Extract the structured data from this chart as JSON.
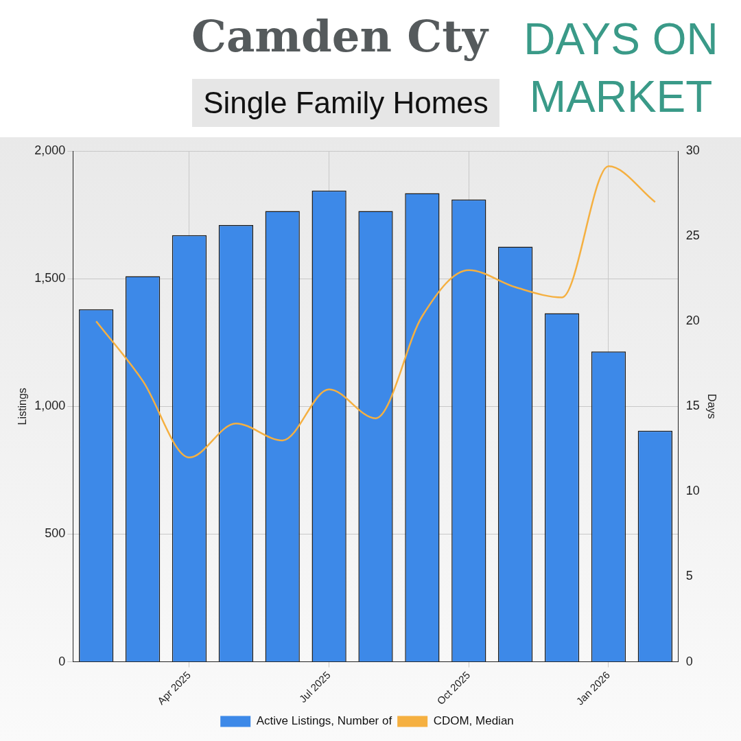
{
  "chart_data": {
    "type": "bar",
    "title": "Camden Cty",
    "subtitle": "Single Family Homes",
    "annotations": [
      "DAYS ON MARKET"
    ],
    "categories": [
      null,
      null,
      "Apr 2025",
      null,
      null,
      "Jul 2025",
      null,
      null,
      "Oct 2025",
      null,
      null,
      "Jan 2026",
      null
    ],
    "series": [
      {
        "name": "Active Listings, Number of",
        "color": "#3d89e8",
        "values": [
          1380,
          1510,
          1670,
          1710,
          1765,
          1845,
          1765,
          1835,
          1810,
          1625,
          1365,
          1215,
          905
        ]
      },
      {
        "name": "CDOM, Median",
        "type": "line",
        "axis": "y2",
        "color": "#f5b041",
        "values": [
          20,
          16.5,
          12,
          14,
          13,
          16,
          14.3,
          20.3,
          23,
          22,
          21.4,
          29.1,
          27
        ]
      }
    ],
    "ylabel": "Listings",
    "y2label": "Days",
    "ylim": [
      0,
      2000
    ],
    "yticks": [
      0,
      500,
      {
        "value": 1000,
        "label": "1,000"
      },
      {
        "value": 1500,
        "label": "1,500"
      },
      {
        "value": 2000,
        "label": "2,000"
      }
    ],
    "y2lim": [
      0,
      30
    ],
    "y2ticks": [
      0,
      5,
      10,
      15,
      20,
      25,
      30
    ],
    "grid": true,
    "legend": "bottom",
    "marker": "none",
    "line_style": "solid"
  }
}
